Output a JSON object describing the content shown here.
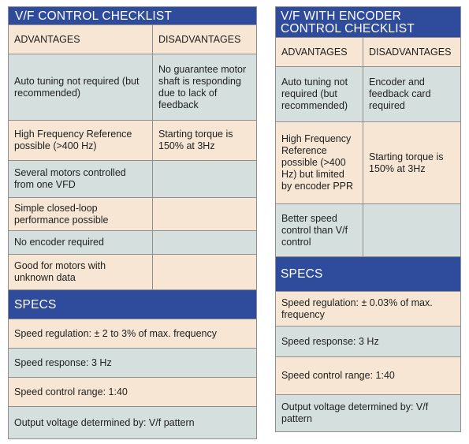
{
  "left": {
    "title": "V/F CONTROL CHECKLIST",
    "col_advantages": "ADVANTAGES",
    "col_disadvantages": "DISADVANTAGES",
    "rows": [
      {
        "adv": "Auto tuning not required (but recommended)",
        "dis": "No guarantee motor shaft is responding due to lack of feedback"
      },
      {
        "adv": "High Frequency Reference possible (>400 Hz)",
        "dis": "Starting torque is 150% at 3Hz"
      },
      {
        "adv": "Several motors controlled from one VFD",
        "dis": ""
      },
      {
        "adv": "Simple closed-loop performance possible",
        "dis": ""
      },
      {
        "adv": "No encoder required",
        "dis": ""
      },
      {
        "adv": "Good for motors with unknown data",
        "dis": ""
      }
    ],
    "specs_title": "SPECS",
    "specs": [
      "Speed regulation: ± 2 to 3% of max. frequency",
      "Speed response: 3 Hz",
      "Speed control range: 1:40",
      "Output voltage determined by: V/f pattern"
    ]
  },
  "right": {
    "title_line1": "V/F WITH ENCODER",
    "title_line2": "CONTROL CHECKLIST",
    "col_advantages": "ADVANTAGES",
    "col_disadvantages": "DISADVANTAGES",
    "rows": [
      {
        "adv": "Auto tuning not required (but recommended)",
        "dis": "Encoder and feedback card required"
      },
      {
        "adv": "High Frequency Reference possible (>400 Hz) but limited by encoder PPR",
        "dis": "Starting torque is 150% at 3Hz"
      },
      {
        "adv": "Better speed control than V/f control",
        "dis": ""
      }
    ],
    "specs_title": "SPECS",
    "specs": [
      "Speed regulation: ± 0.03% of max. frequency",
      "Speed response: 3 Hz",
      "Speed control range: 1:40",
      "Output voltage determined by: V/f pattern"
    ]
  }
}
